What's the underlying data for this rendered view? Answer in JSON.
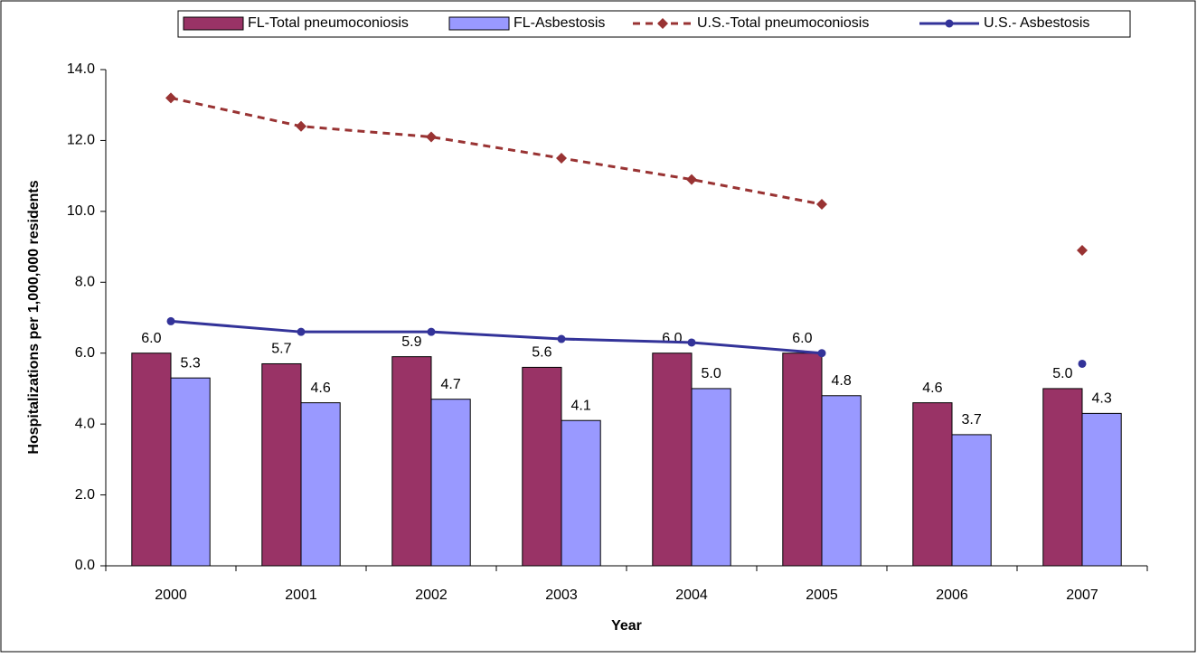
{
  "chart_data": {
    "type": "bar",
    "x_label": "Year",
    "y_label": "Hospitalizations per 1,000,000 residents",
    "categories": [
      "2000",
      "2001",
      "2002",
      "2003",
      "2004",
      "2005",
      "2006",
      "2007"
    ],
    "series": [
      {
        "name": "FL-Total pneumoconiosis",
        "type": "bar",
        "color": "#993366",
        "values": [
          6.0,
          5.7,
          5.9,
          5.6,
          6.0,
          6.0,
          4.6,
          5.0
        ],
        "value_labels": [
          "6.0",
          "5.7",
          "5.9",
          "5.6",
          "6.0",
          "6.0",
          "4.6",
          "5.0"
        ]
      },
      {
        "name": "FL-Asbestosis",
        "type": "bar",
        "color": "#9999ff",
        "values": [
          5.3,
          4.6,
          4.7,
          4.1,
          5.0,
          4.8,
          3.7,
          4.3
        ],
        "value_labels": [
          "5.3",
          "4.6",
          "4.7",
          "4.1",
          "5.0",
          "4.8",
          "3.7",
          "4.3"
        ]
      },
      {
        "name": "U.S.-Total pneumoconiosis",
        "type": "line",
        "color": "#993333",
        "line_style": "dashed",
        "marker": "diamond",
        "values": [
          13.2,
          12.4,
          12.1,
          11.5,
          10.9,
          10.2,
          null,
          8.9
        ]
      },
      {
        "name": "U.S.- Asbestosis",
        "type": "line",
        "color": "#333399",
        "line_style": "solid",
        "marker": "circle",
        "values": [
          6.9,
          6.6,
          6.6,
          6.4,
          6.3,
          6.0,
          null,
          5.7
        ]
      }
    ],
    "ylim": [
      0,
      14
    ],
    "yticks": [
      {
        "value": 0,
        "label": "0.0"
      },
      {
        "value": 2,
        "label": "2.0"
      },
      {
        "value": 4,
        "label": "4.0"
      },
      {
        "value": 6,
        "label": "6.0"
      },
      {
        "value": 8,
        "label": "8.0"
      },
      {
        "value": 10,
        "label": "10.0"
      },
      {
        "value": 12,
        "label": "12.0"
      },
      {
        "value": 14,
        "label": "14.0"
      }
    ],
    "grid": false,
    "legend": "top"
  }
}
